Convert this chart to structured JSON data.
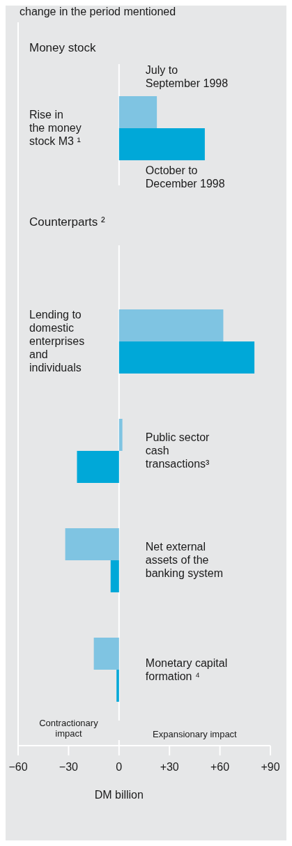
{
  "chart_data": [
    {
      "type": "bar",
      "orientation": "horizontal",
      "title": "Money stock",
      "annotations": [
        "change in the period mentioned"
      ],
      "categories": [
        "Rise in the money stock M3 ¹"
      ],
      "series": [
        {
          "name": "July to September 1998",
          "color": "#7fc4e2",
          "values": [
            22.5
          ]
        },
        {
          "name": "October to December 1998",
          "color": "#00a8d8",
          "values": [
            51
          ]
        }
      ],
      "xlim": [
        -60,
        90
      ],
      "tick_labels": "y",
      "legend": false
    },
    {
      "type": "bar",
      "orientation": "horizontal",
      "title": "Counterparts ²",
      "xlabel": "DM billion",
      "categories": [
        "Lending to domestic enterprises and individuals",
        "Public sector cash transactions³",
        "Net external assets of the banking system",
        "Monetary capital formation ⁴"
      ],
      "series": [
        {
          "color": "#7fc4e2",
          "values": [
            62,
            2,
            -32,
            -15
          ]
        },
        {
          "color": "#00a8d8",
          "values": [
            80.5,
            -25,
            -5,
            -1.5
          ]
        }
      ],
      "xlim": [
        -60,
        90
      ],
      "xticks": [
        {
          "value": -60,
          "label": "−60"
        },
        {
          "value": -30,
          "label": "−30"
        },
        0,
        {
          "value": 30,
          "label": "+30"
        },
        {
          "value": 60,
          "label": "+60"
        },
        {
          "value": 90,
          "label": "+90"
        }
      ],
      "annotations": [
        "Contractionary impact",
        "Expansionary impact"
      ],
      "legend": false
    }
  ]
}
